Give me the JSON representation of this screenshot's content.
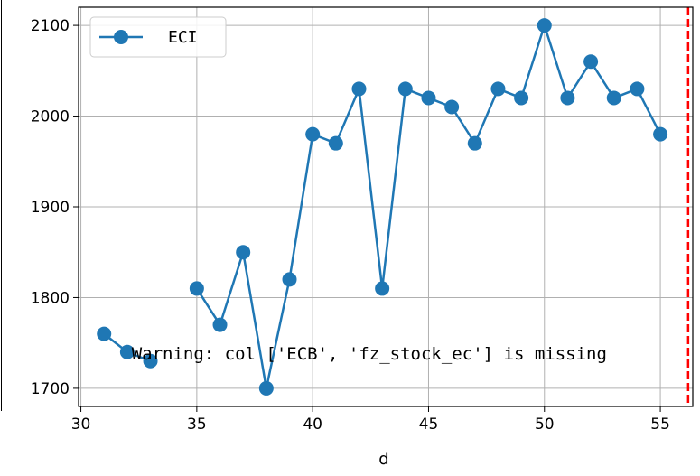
{
  "chart_data": {
    "type": "line",
    "xlabel": "d",
    "ylabel": "",
    "xlim": [
      29.9,
      56.4
    ],
    "ylim": [
      1680,
      2120
    ],
    "xticks": [
      30,
      35,
      40,
      45,
      50,
      55
    ],
    "yticks": [
      1700,
      1800,
      1900,
      2000,
      2100
    ],
    "grid": true,
    "legend_position": "top-left",
    "series": [
      {
        "name": "ECI",
        "color": "#1f77b4",
        "marker": "circle",
        "x": [
          31,
          32,
          33,
          34,
          35,
          36,
          37,
          38,
          39,
          40,
          41,
          42,
          43,
          44,
          45,
          46,
          47,
          48,
          49,
          50,
          51,
          52,
          53,
          54,
          55
        ],
        "y": [
          1760,
          1740,
          1730,
          null,
          1810,
          1770,
          1850,
          1700,
          1820,
          1980,
          1970,
          2030,
          1810,
          2030,
          2020,
          2010,
          1970,
          2030,
          2020,
          2100,
          2020,
          2060,
          2020,
          2030,
          1980
        ]
      }
    ],
    "vline": {
      "x": 56.2,
      "color": "#ff0000",
      "style": "dashed"
    },
    "annotation": {
      "text": "Warning: col ['ECB', 'fz_stock_ec'] is missing",
      "x": 32.5,
      "y": 1730
    }
  }
}
